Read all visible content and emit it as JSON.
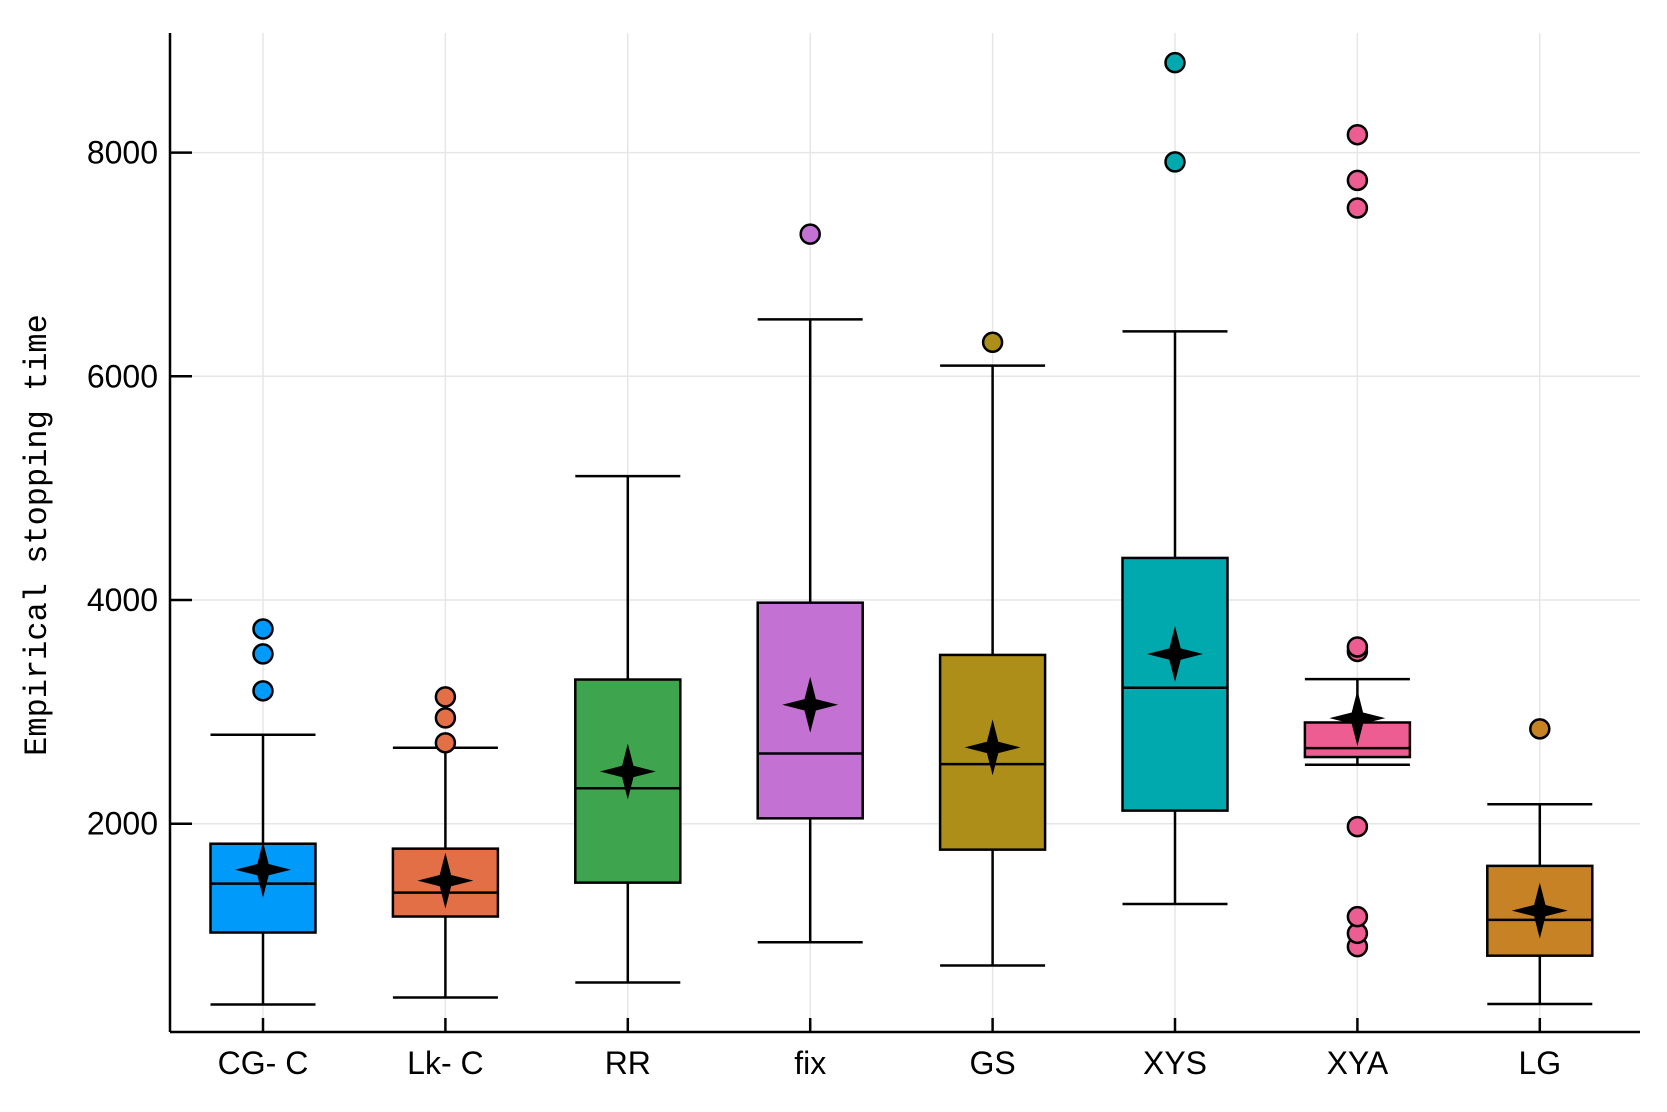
{
  "chart_data": {
    "type": "boxplot",
    "title": "",
    "xlabel": "",
    "ylabel": "Empirical stopping time",
    "ylim": [
      134,
      9000
    ],
    "yticks": [
      2000,
      4000,
      6000,
      8000
    ],
    "grid": true,
    "legend": "none",
    "categories": [
      "CG- C",
      "Lk- C",
      "RR",
      "fix",
      "GS",
      "XYS",
      "XYA",
      "LG"
    ],
    "series": [
      {
        "name": "CG- C",
        "color": "#009AFA",
        "whisker_low": 384,
        "q1": 1027,
        "median": 1464,
        "q3": 1821,
        "whisker_high": 2795,
        "mean": 1589,
        "outliers": [
          3188,
          3518,
          3741
        ]
      },
      {
        "name": "Lk- C",
        "color": "#E36F47",
        "whisker_low": 446,
        "q1": 1170,
        "median": 1384,
        "q3": 1777,
        "whisker_high": 2679,
        "mean": 1491,
        "outliers": [
          2723,
          2946,
          3134
        ]
      },
      {
        "name": "RR",
        "color": "#3EA44E",
        "whisker_low": 580,
        "q1": 1473,
        "median": 2317,
        "q3": 3289,
        "whisker_high": 5107,
        "mean": 2467,
        "outliers": []
      },
      {
        "name": "fix",
        "color": "#C371D2",
        "whisker_low": 940,
        "q1": 2048,
        "median": 2628,
        "q3": 3976,
        "whisker_high": 6509,
        "mean": 3063,
        "outliers": [
          7271
        ]
      },
      {
        "name": "GS",
        "color": "#AC8E18",
        "whisker_low": 732,
        "q1": 1768,
        "median": 2533,
        "q3": 3509,
        "whisker_high": 6095,
        "mean": 2682,
        "outliers": [
          6304
        ]
      },
      {
        "name": "XYS",
        "color": "#00A9AD",
        "whisker_low": 1282,
        "q1": 2117,
        "median": 3216,
        "q3": 4376,
        "whisker_high": 6402,
        "mean": 3517,
        "outliers": [
          7917,
          8804
        ]
      },
      {
        "name": "XYA",
        "color": "#ED5D92",
        "whisker_low": 2527,
        "q1": 2596,
        "median": 2676,
        "q3": 2905,
        "whisker_high": 3293,
        "mean": 2944,
        "outliers": [
          901,
          1020,
          1169,
          1974,
          3540,
          3580,
          7505,
          7752,
          8160
        ]
      },
      {
        "name": "LG",
        "color": "#C68225",
        "whisker_low": 388,
        "q1": 820,
        "median": 1140,
        "q3": 1623,
        "whisker_high": 2174,
        "mean": 1223,
        "outliers": [
          2848
        ]
      }
    ],
    "mean_marker": "black four-pointed star"
  }
}
